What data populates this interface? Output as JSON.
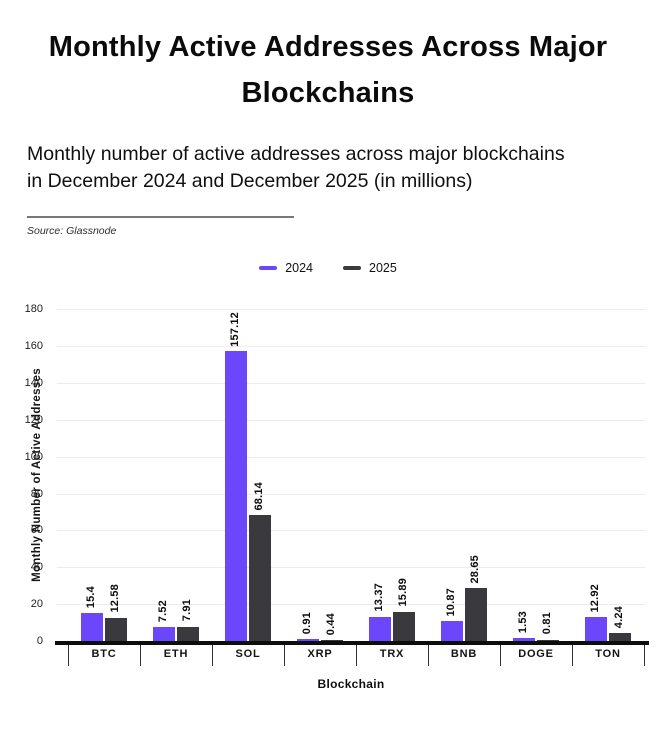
{
  "header": {
    "title": "Monthly Active Addresses Across Major Blockchains",
    "subtitle": "Monthly number of active addresses across major blockchains in December 2024 and December 2025 (in millions)",
    "source": "Source: Glassnode"
  },
  "colors": {
    "series_2024": "#6b46fa",
    "series_2025": "#3a393d",
    "gridline": "#ececec",
    "axis": "#0d0d0d"
  },
  "chart_data": {
    "type": "bar",
    "title": "Monthly Active Addresses Across Major Blockchains",
    "categories": [
      "BTC",
      "ETH",
      "SOL",
      "XRP",
      "TRX",
      "BNB",
      "DOGE",
      "TON"
    ],
    "series": [
      {
        "name": "2024",
        "color": "#6b46fa",
        "values": [
          15.4,
          7.52,
          157.12,
          0.91,
          13.37,
          10.87,
          1.53,
          12.92
        ]
      },
      {
        "name": "2025",
        "color": "#3a393d",
        "values": [
          12.58,
          7.91,
          68.14,
          0.44,
          15.89,
          28.65,
          0.81,
          4.24
        ]
      }
    ],
    "xlabel": "Blockchain",
    "ylabel": "Monthly Number of Active Addresses",
    "ylim": [
      0,
      180
    ],
    "ytick_step": 20,
    "grid": true,
    "legend_position": "top-center"
  }
}
